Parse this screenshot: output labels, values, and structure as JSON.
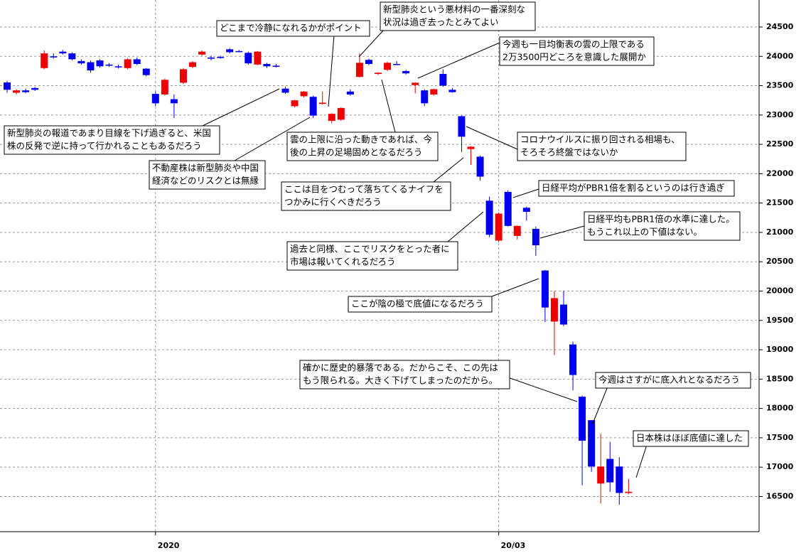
{
  "chart_data": {
    "type": "candlestick",
    "categories": [
      null,
      null,
      null,
      null,
      null,
      null,
      null,
      null,
      null,
      null,
      null,
      null,
      null,
      null,
      null,
      null,
      "2020",
      null,
      null,
      null,
      null,
      null,
      null,
      null,
      null,
      null,
      null,
      null,
      null,
      null,
      null,
      null,
      null,
      null,
      null,
      null,
      null,
      null,
      null,
      null,
      null,
      null,
      null,
      null,
      null,
      null,
      null,
      null,
      null,
      null,
      null,
      null,
      null,
      "20/03",
      null,
      null,
      null,
      null,
      null,
      null,
      null,
      null,
      null,
      null,
      null,
      null,
      null,
      null
    ],
    "open": [
      23555,
      23380,
      23420,
      23460,
      23800,
      24000,
      24080,
      24050,
      23920,
      23900,
      23930,
      23860,
      23830,
      23800,
      23950,
      23790,
      23360,
      23350,
      23270,
      23550,
      23820,
      24030,
      23980,
      23990,
      24120,
      24090,
      24060,
      23860,
      23870,
      23840,
      23450,
      23150,
      23320,
      23310,
      23190,
      22900,
      22920,
      23400,
      23650,
      23940,
      23700,
      23770,
      23870,
      23750,
      23510,
      23420,
      23350,
      23700,
      23430,
      22980,
      22420,
      22290,
      21540,
      20860,
      21690,
      20940,
      21420,
      21060,
      20350,
      19480,
      19770,
      19090,
      18200,
      17800,
      16720,
      17140,
      17010,
      16560
    ],
    "high": [
      23580,
      23440,
      23450,
      23480,
      24100,
      24050,
      24110,
      24070,
      23950,
      23930,
      23950,
      23880,
      23860,
      23970,
      23980,
      23800,
      23400,
      23620,
      23350,
      23800,
      23920,
      24100,
      24010,
      24010,
      24140,
      24110,
      24080,
      24090,
      23890,
      23870,
      23480,
      23260,
      23410,
      23330,
      23400,
      23030,
      23130,
      23440,
      24050,
      23960,
      23730,
      23910,
      23920,
      23770,
      23560,
      23440,
      23450,
      23780,
      23460,
      22990,
      22470,
      22310,
      21610,
      21340,
      21720,
      21120,
      21440,
      21100,
      20360,
      20000,
      20000,
      19140,
      18220,
      17800,
      17570,
      17430,
      17170,
      16800
    ],
    "low": [
      23380,
      23350,
      23370,
      23410,
      23780,
      23960,
      24030,
      23930,
      23860,
      23720,
      23810,
      23820,
      23790,
      23780,
      23850,
      23660,
      23150,
      23330,
      22950,
      23530,
      23800,
      24010,
      23930,
      23960,
      24050,
      24070,
      23860,
      23850,
      23800,
      23810,
      23360,
      23130,
      23300,
      22950,
      23180,
      22860,
      22900,
      23330,
      23640,
      23850,
      23680,
      23750,
      23850,
      23690,
      23370,
      23150,
      23330,
      23480,
      23380,
      22370,
      22150,
      21880,
      20920,
      20830,
      21100,
      20880,
      21200,
      20600,
      19470,
      18910,
      19400,
      18310,
      16690,
      16920,
      16380,
      16580,
      16360,
      16540
    ],
    "close": [
      23430,
      23420,
      23390,
      23430,
      24050,
      23990,
      24050,
      23950,
      23880,
      23760,
      23830,
      23840,
      23820,
      23950,
      23870,
      23680,
      23200,
      23600,
      23200,
      23780,
      23900,
      24080,
      23960,
      23980,
      24070,
      24080,
      23880,
      24080,
      23830,
      23830,
      23380,
      23250,
      23400,
      22990,
      23210,
      23020,
      23120,
      23350,
      23890,
      23870,
      23720,
      23890,
      23860,
      23710,
      23550,
      23200,
      23440,
      23500,
      23390,
      22630,
      22460,
      21950,
      20960,
      21320,
      21110,
      21110,
      21350,
      20780,
      19720,
      19880,
      19430,
      18570,
      17450,
      17010,
      17010,
      16740,
      16560,
      16580
    ],
    "up_color": "#ee0000",
    "down_color": "#0000ee",
    "ylim": [
      15900,
      24960
    ],
    "yticks": [
      16500,
      17000,
      17500,
      18000,
      18500,
      19000,
      19500,
      20000,
      20500,
      21000,
      21500,
      22000,
      22500,
      23000,
      23500,
      24000,
      24500
    ],
    "grid": true,
    "annotations": [
      {
        "lines": [
          "新型肺炎という悪材料の一番深刻な",
          "状況は過ぎ去ったとみてよい"
        ]
      },
      {
        "lines": [
          "どこまで冷静になれるかがポイント"
        ]
      },
      {
        "lines": [
          "今週も一目均衡表の雲の上限である",
          "2万3500円どころを意識した展開か"
        ]
      },
      {
        "lines": [
          "新型肺炎の報道であまり目線を下げ過ぎると、米国",
          "株の反発で逆に持って行かれることもあるだろう"
        ]
      },
      {
        "lines": [
          "不動産株は新型肺炎や中国",
          "経済などのリスクとは無縁"
        ]
      },
      {
        "lines": [
          "雲の上限に沿った動きであれば、今",
          "後の上昇の足場固めとなるだろう"
        ]
      },
      {
        "lines": [
          "コロナウイルスに振り回される相場も、",
          "そろそろ終盤ではないか"
        ]
      },
      {
        "lines": [
          "ここは目をつむって落ちてくるナイフを",
          "つかみに行くべきだろう"
        ]
      },
      {
        "lines": [
          "日経平均がPBR1倍を割るというのは行き過ぎ"
        ]
      },
      {
        "lines": [
          "日経平均もPBR1倍の水準に達した。",
          "もうこれ以上の下値はない。"
        ]
      },
      {
        "lines": [
          "過去と同様、ここでリスクをとった者に",
          "市場は報いてくれるだろう"
        ]
      },
      {
        "lines": [
          "ここが陰の極で底値になるだろう"
        ]
      },
      {
        "lines": [
          "確かに歴史的暴落である。だからこそ、この先は",
          "もう限られる。大きく下げてしまったのだから。"
        ]
      },
      {
        "lines": [
          "今週はさすがに底入れとなるだろう"
        ]
      },
      {
        "lines": [
          "日本株はほぼ底値に達した"
        ]
      }
    ]
  }
}
